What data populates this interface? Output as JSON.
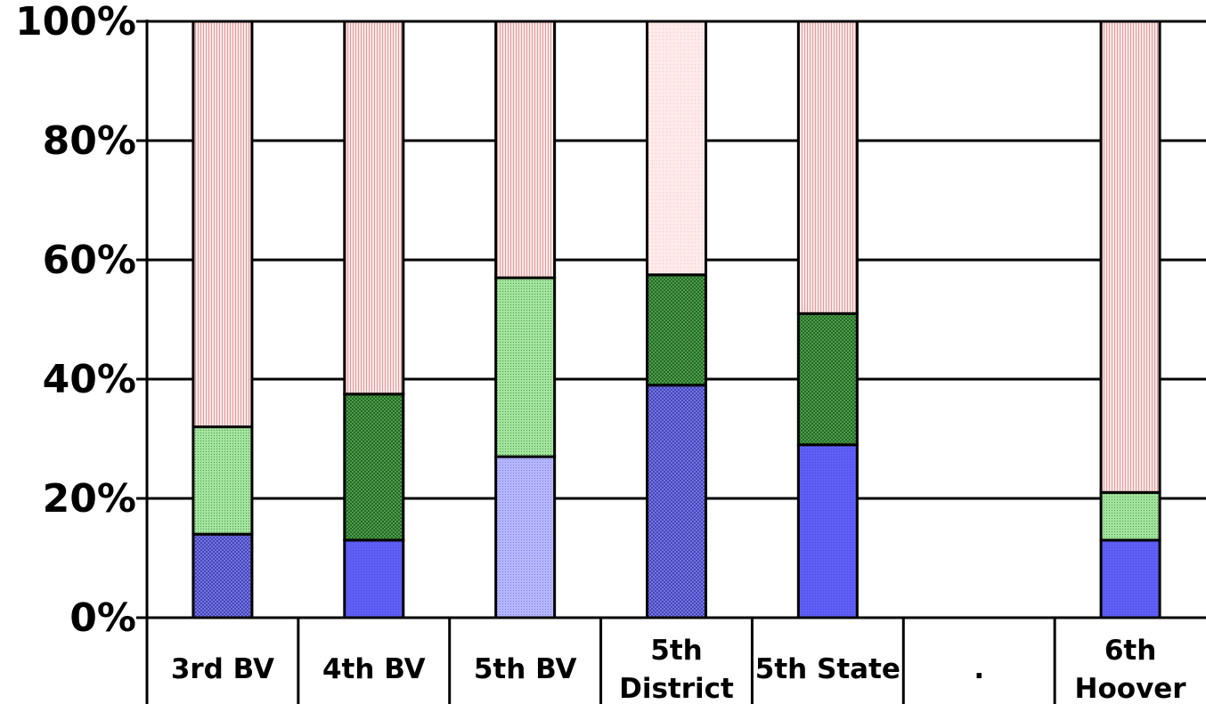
{
  "chart_data": {
    "type": "bar",
    "stacked": true,
    "categories": [
      "3rd BV",
      "4th BV",
      "5th BV",
      "5th District",
      "5th State",
      ".",
      "6th Hoover"
    ],
    "category_label_lines": [
      [
        "3rd BV"
      ],
      [
        "4th BV"
      ],
      [
        "5th BV"
      ],
      [
        "5th",
        "District"
      ],
      [
        "5th State"
      ],
      [
        "."
      ],
      [
        "6th",
        "Hoover"
      ]
    ],
    "series": [
      {
        "values": [
          14,
          13,
          27,
          39,
          29,
          null,
          13
        ],
        "pattern": [
          "hatch",
          "solid",
          "dots",
          "hatch",
          "solid",
          null,
          "solid"
        ],
        "color": "#6a6aff"
      },
      {
        "values": [
          18,
          24.5,
          30,
          18.5,
          22,
          null,
          8
        ],
        "pattern": [
          "dots",
          "hatch",
          "dots",
          "hatch",
          "hatch",
          null,
          "dots"
        ],
        "color": "#4aa84a"
      },
      {
        "values": [
          68,
          62.5,
          43,
          42.5,
          49,
          null,
          79
        ],
        "pattern": [
          "stripes",
          "stripes",
          "stripes",
          "light",
          "stripes",
          null,
          "stripes"
        ],
        "color": "#ffb4b4"
      }
    ],
    "ylim": [
      0,
      100
    ],
    "yticks": [
      "0%",
      "20%",
      "40%",
      "60%",
      "80%",
      "100%"
    ],
    "ytick_values": [
      0,
      20,
      40,
      60,
      80,
      100
    ],
    "grid": true,
    "legend": "none",
    "title": "",
    "xlabel": "",
    "ylabel": ""
  }
}
